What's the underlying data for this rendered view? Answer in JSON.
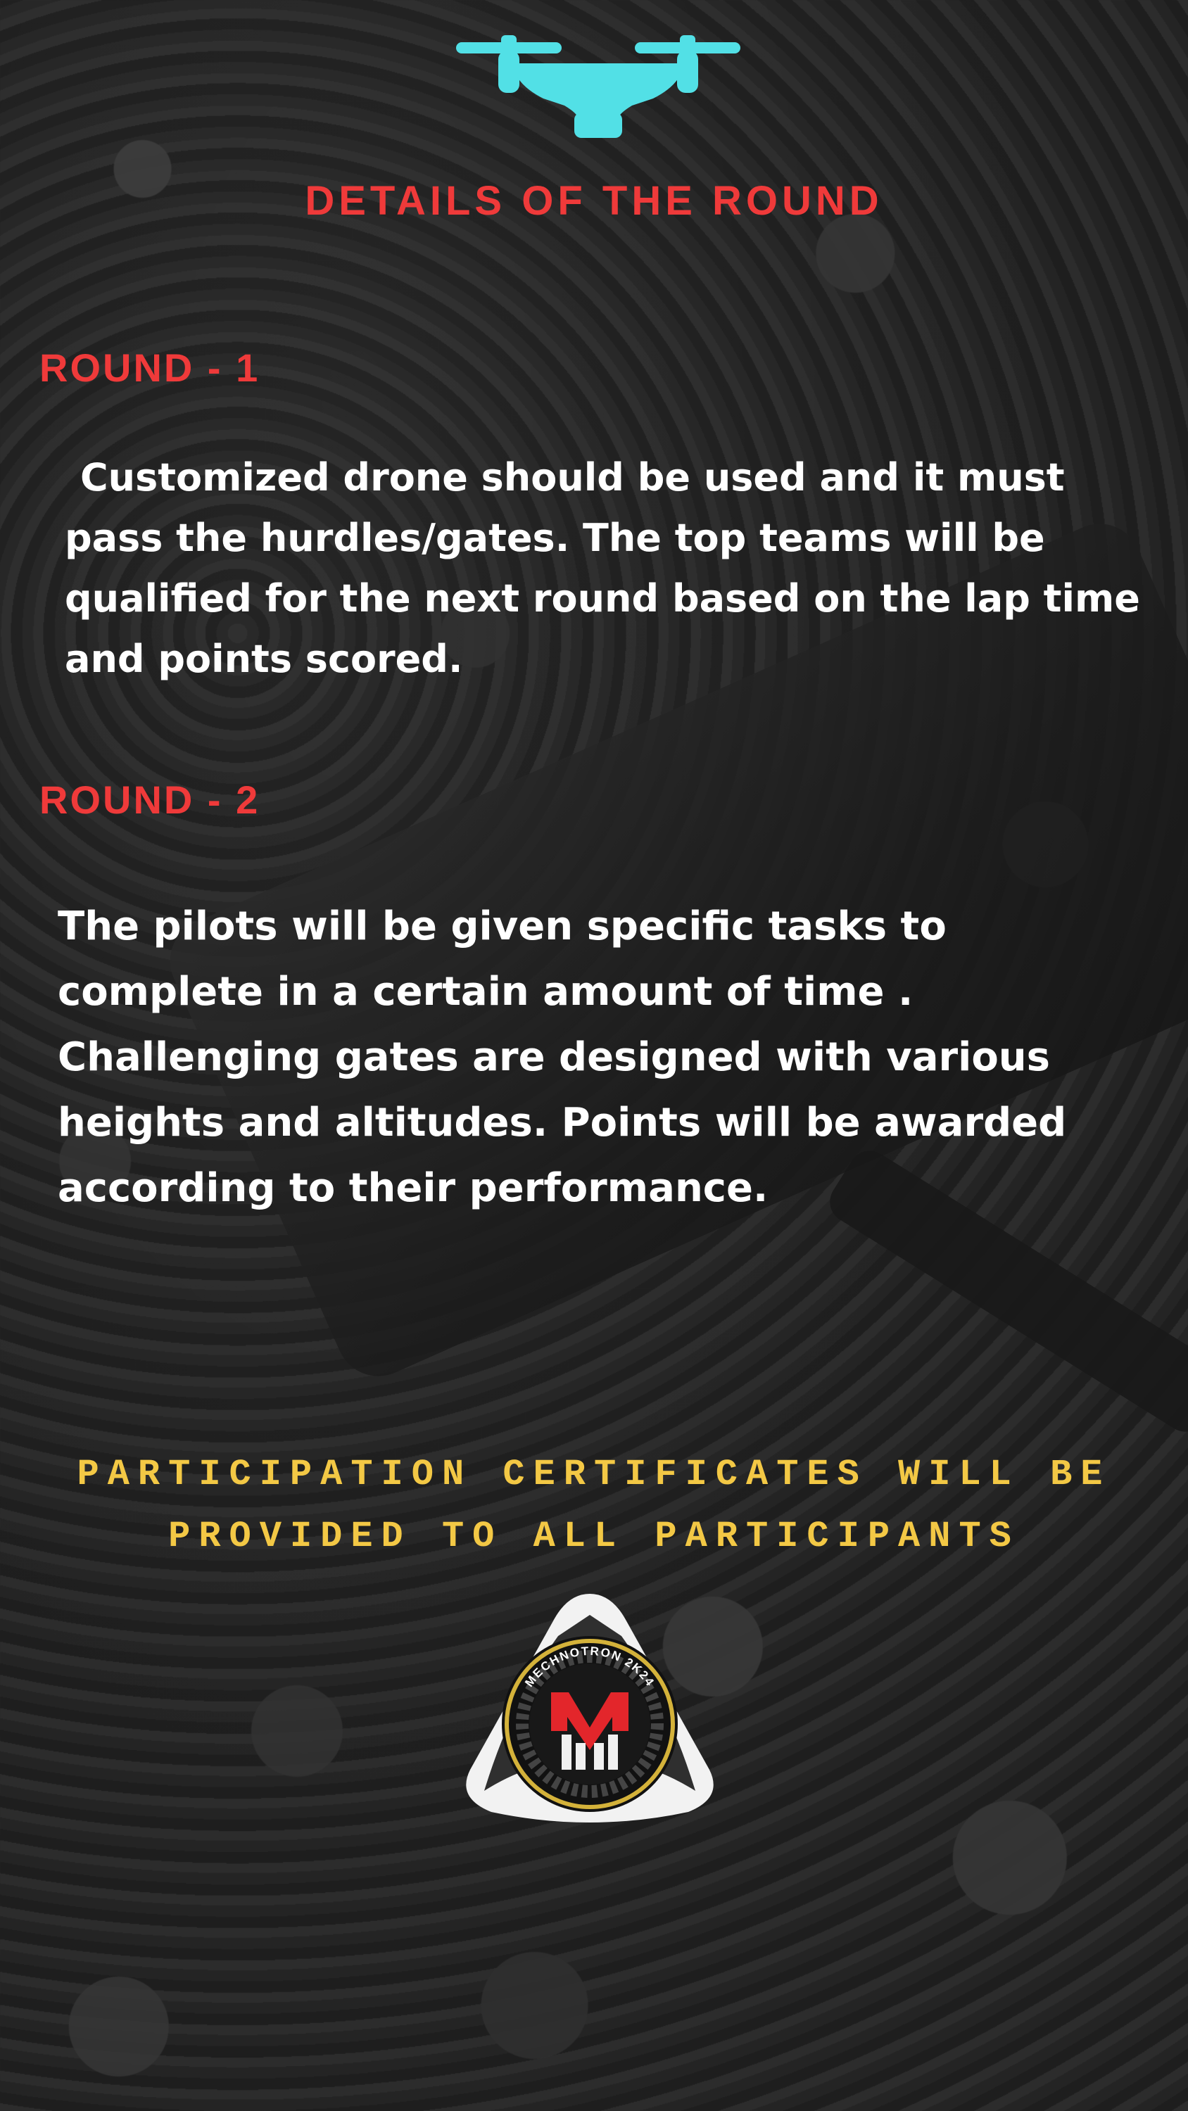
{
  "title": "DETAILS OF THE ROUND",
  "rounds": [
    {
      "heading": "ROUND - 1",
      "text": "Customized drone should be used and it must pass the hurdles/gates. The top teams will be qualified for the next round based on the lap time and points scored."
    },
    {
      "heading": "ROUND - 2",
      "text": "The pilots will be given specific tasks to complete in a certain amount of time . Challenging gates are designed with various heights and altitudes. Points will be awarded according to their performance."
    }
  ],
  "certificate_note": "PARTICIPATION CERTIFICATES WILL BE PROVIDED TO ALL PARTICIPANTS",
  "logo": {
    "ring_text": "MECHNOTRON 2K24",
    "icon": "mechnotron-logo"
  },
  "icons": {
    "header": "drone-icon"
  },
  "colors": {
    "heading_red": "#ef3a3a",
    "body_text": "#ffffff",
    "certificate_yellow": "#f3c845",
    "drone_cyan": "#52e0e6"
  }
}
